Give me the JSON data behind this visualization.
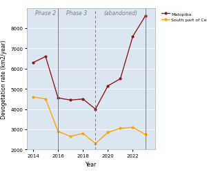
{
  "years_matopiba": [
    2014,
    2015,
    2016,
    2017,
    2018,
    2019,
    2020,
    2021,
    2022,
    2023
  ],
  "matopiba_values": [
    6300,
    6600,
    4550,
    4450,
    4500,
    4000,
    5150,
    5500,
    7600,
    8600
  ],
  "years_cerrado": [
    2014,
    2015,
    2016,
    2017,
    2018,
    2019,
    2020,
    2021,
    2022,
    2023
  ],
  "cerrado_values": [
    4600,
    4500,
    2900,
    2650,
    2800,
    2300,
    2850,
    3050,
    3100,
    2750
  ],
  "matopiba_color": "#8B1A1A",
  "cerrado_color": "#FFA500",
  "background_color": "#dce6f0",
  "phase2_label": "Phase 2",
  "phase3_label": "Phase 3",
  "abandoned_label": "(abandoned)",
  "ylabel": "Devogetation rate (km2/year)",
  "xlabel": "Year",
  "legend_matopiba": "Matopiba",
  "legend_cerrado": "South part of Cerrado",
  "ylim": [
    2000,
    9000
  ],
  "yticks": [
    2000,
    3000,
    4000,
    5000,
    6000,
    7000,
    8000
  ],
  "xticks": [
    2014,
    2016,
    2018,
    2020,
    2022
  ],
  "vline_phase2": 2016,
  "vline_phase3_dashed": 2019,
  "vline_abandoned": 2023,
  "phase2_mid": 2015.0,
  "phase3_mid": 2017.5,
  "abandoned_mid": 2021.0,
  "label_fontsize": 5.5,
  "tick_fontsize": 5,
  "legend_fontsize": 4.5,
  "xlim_left": 2013.5,
  "xlim_right": 2023.8
}
